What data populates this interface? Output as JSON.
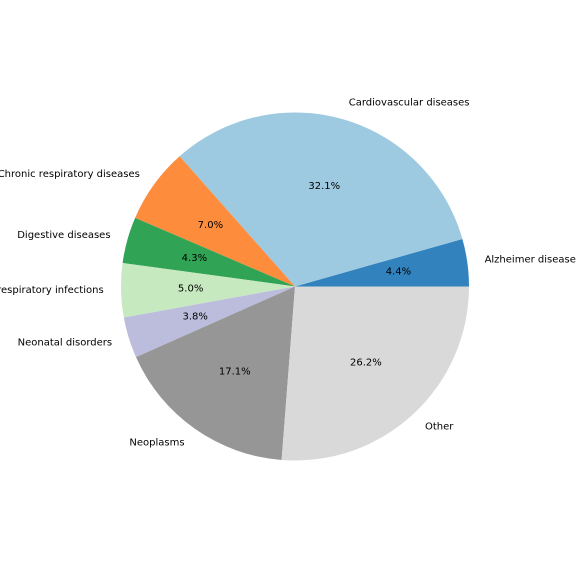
{
  "chart_data": {
    "type": "pie",
    "counterclockwise": true,
    "start_angle": 0,
    "slices": [
      {
        "label": "Alzheimer disease",
        "value": 4.4,
        "pct_label": "4.4%",
        "color": "#3182bd"
      },
      {
        "label": "Cardiovascular diseases",
        "value": 32.1,
        "pct_label": "32.1%",
        "color": "#9ecae1"
      },
      {
        "label": "Chronic respiratory diseases",
        "value": 7.0,
        "pct_label": "7.0%",
        "color": "#fd8d3c"
      },
      {
        "label": "Digestive diseases",
        "value": 4.3,
        "pct_label": "4.3%",
        "color": "#31a354"
      },
      {
        "label": "Lower respiratory infections",
        "value": 5.0,
        "pct_label": "5.0%",
        "color": "#c7e9c0"
      },
      {
        "label": "Neonatal disorders",
        "value": 3.8,
        "pct_label": "3.8%",
        "color": "#bcbddc"
      },
      {
        "label": "Neoplasms",
        "value": 17.1,
        "pct_label": "17.1%",
        "color": "#969696"
      },
      {
        "label": "Other",
        "value": 26.2,
        "pct_label": "26.2%",
        "color": "#d9d9d9"
      }
    ]
  }
}
